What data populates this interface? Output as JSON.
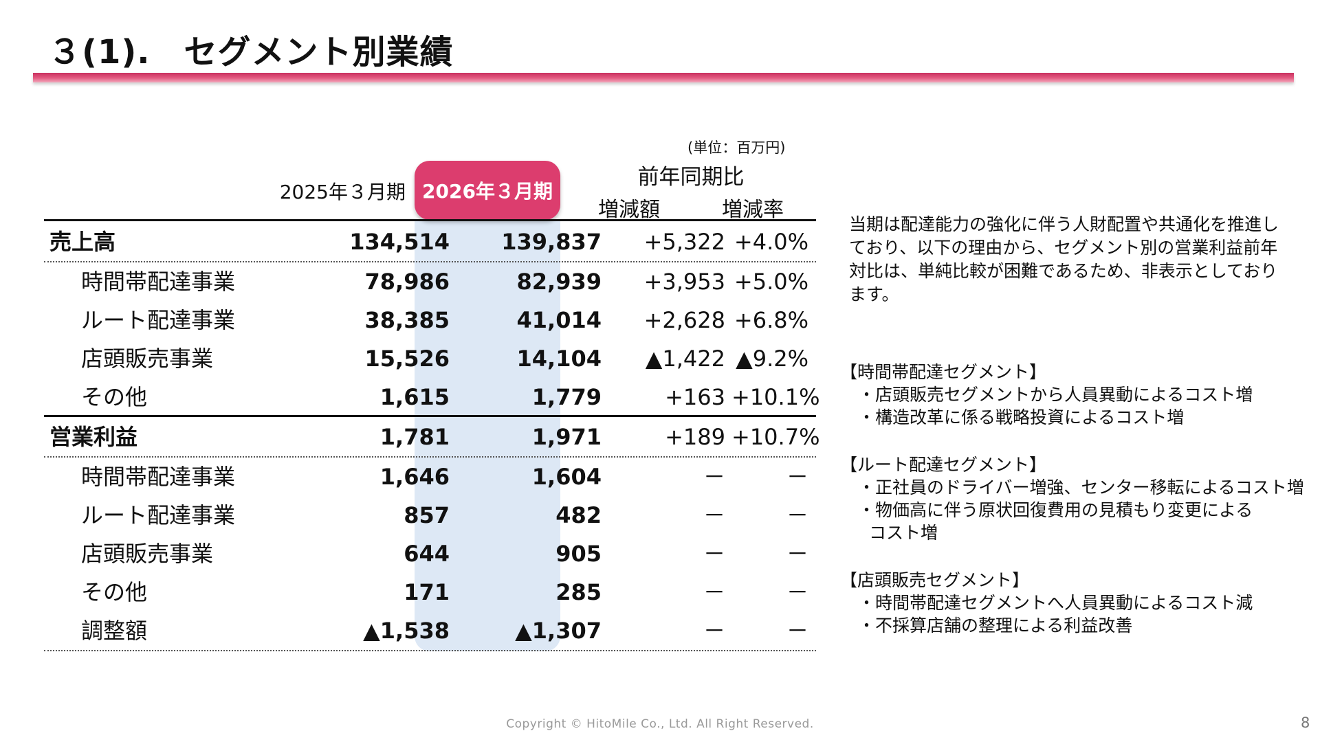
{
  "title": "３(1).　セグメント別業績",
  "unit_note": "(単位：百万円)",
  "headers": {
    "fy2025": "2025年３月期",
    "fy2026": "2026年３月期",
    "yoy": "前年同期比",
    "change_amount": "増減額",
    "change_rate": "増減率"
  },
  "rows": [
    {
      "label": "売上高",
      "fy2025": "134,514",
      "fy2026": "139,837",
      "change": "+5,322",
      "rate": "+4.0%"
    },
    {
      "label": "時間帯配達事業",
      "fy2025": "78,986",
      "fy2026": "82,939",
      "change": "+3,953",
      "rate": "+5.0%"
    },
    {
      "label": "ルート配達事業",
      "fy2025": "38,385",
      "fy2026": "41,014",
      "change": "+2,628",
      "rate": "+6.8%"
    },
    {
      "label": "店頭販売事業",
      "fy2025": "15,526",
      "fy2026": "14,104",
      "change": "▲1,422",
      "rate": "▲9.2%"
    },
    {
      "label": "その他",
      "fy2025": "1,615",
      "fy2026": "1,779",
      "change": "+163",
      "rate": "+10.1%"
    },
    {
      "label": "営業利益",
      "fy2025": "1,781",
      "fy2026": "1,971",
      "change": "+189",
      "rate": "+10.7%"
    },
    {
      "label": "時間帯配達事業",
      "fy2025": "1,646",
      "fy2026": "1,604",
      "change": "－",
      "rate": "－"
    },
    {
      "label": "ルート配達事業",
      "fy2025": "857",
      "fy2026": "482",
      "change": "－",
      "rate": "－"
    },
    {
      "label": "店頭販売事業",
      "fy2025": "644",
      "fy2026": "905",
      "change": "－",
      "rate": "－"
    },
    {
      "label": "その他",
      "fy2025": "171",
      "fy2026": "285",
      "change": "－",
      "rate": "－"
    },
    {
      "label": "調整額",
      "fy2025": "▲1,538",
      "fy2026": "▲1,307",
      "change": "－",
      "rate": "－"
    }
  ],
  "note": "当期は配達能力の強化に伴う人財配置や共通化を推進しており、以下の理由から、セグメント別の営業利益前年対比は、単純比較が困難であるため、非表示としております。",
  "segments": [
    {
      "title": "【時間帯配達セグメント】",
      "items": [
        "・店頭販売セグメントから人員異動によるコスト増",
        "・構造改革に係る戦略投資によるコスト増"
      ]
    },
    {
      "title": "【ルート配達セグメント】",
      "items": [
        "・正社員のドライバー増強、センター移転によるコスト増",
        "・物価高に伴う原状回復費用の見積もり変更による",
        "コスト増"
      ]
    },
    {
      "title": "【店頭販売セグメント】",
      "items": [
        "・時間帯配達セグメントへ人員異動によるコスト減",
        "・不採算店舗の整理による利益改善"
      ]
    }
  ],
  "footer": "Copyright © HitoMile Co., Ltd. All Right Reserved.",
  "page_number": "8"
}
